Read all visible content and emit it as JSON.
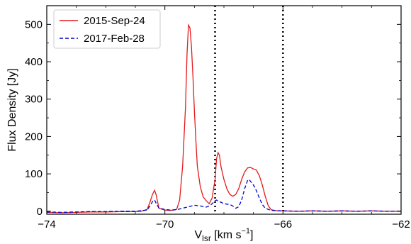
{
  "chart_data": {
    "type": "line",
    "title": "",
    "xlabel_main": "V",
    "xlabel_sub": "lsr",
    "xlabel_unit": " [km s",
    "xlabel_exp": "−1",
    "xlabel_close": "]",
    "ylabel": "Flux Density [Jy]",
    "xlim": [
      -74,
      -62
    ],
    "ylim": [
      -8,
      550
    ],
    "x_ticks": [
      -74,
      -70,
      -66,
      -62
    ],
    "x_tick_labels": [
      "−74",
      "−70",
      "−66",
      "−62"
    ],
    "y_ticks": [
      0,
      100,
      200,
      300,
      400,
      500
    ],
    "y_tick_labels": [
      "0",
      "100",
      "200",
      "300",
      "400",
      "500"
    ],
    "grid": false,
    "legend_position": "top-left",
    "vlines": [
      -68.3,
      -66.0
    ],
    "series": [
      {
        "name": "2015-Sep-24",
        "color": "#e41a1c",
        "dash": "solid",
        "points": [
          [
            -74.0,
            -3
          ],
          [
            -73.5,
            -4
          ],
          [
            -73.0,
            -3
          ],
          [
            -72.5,
            -2
          ],
          [
            -72.0,
            -2
          ],
          [
            -71.5,
            -1
          ],
          [
            -71.0,
            -1
          ],
          [
            -70.8,
            0
          ],
          [
            -70.6,
            5
          ],
          [
            -70.5,
            25
          ],
          [
            -70.42,
            45
          ],
          [
            -70.35,
            56
          ],
          [
            -70.3,
            45
          ],
          [
            -70.2,
            8
          ],
          [
            -70.0,
            3
          ],
          [
            -69.8,
            2
          ],
          [
            -69.6,
            5
          ],
          [
            -69.5,
            30
          ],
          [
            -69.4,
            120
          ],
          [
            -69.3,
            280
          ],
          [
            -69.25,
            420
          ],
          [
            -69.2,
            498
          ],
          [
            -69.15,
            490
          ],
          [
            -69.1,
            440
          ],
          [
            -69.05,
            360
          ],
          [
            -69.0,
            270
          ],
          [
            -68.95,
            190
          ],
          [
            -68.9,
            120
          ],
          [
            -68.8,
            65
          ],
          [
            -68.7,
            38
          ],
          [
            -68.6,
            28
          ],
          [
            -68.5,
            20
          ],
          [
            -68.4,
            35
          ],
          [
            -68.3,
            85
          ],
          [
            -68.25,
            140
          ],
          [
            -68.2,
            157
          ],
          [
            -68.15,
            150
          ],
          [
            -68.1,
            120
          ],
          [
            -68.0,
            85
          ],
          [
            -67.9,
            60
          ],
          [
            -67.8,
            45
          ],
          [
            -67.7,
            40
          ],
          [
            -67.6,
            45
          ],
          [
            -67.5,
            60
          ],
          [
            -67.4,
            85
          ],
          [
            -67.3,
            105
          ],
          [
            -67.2,
            116
          ],
          [
            -67.1,
            117
          ],
          [
            -67.0,
            113
          ],
          [
            -66.9,
            110
          ],
          [
            -66.8,
            95
          ],
          [
            -66.7,
            70
          ],
          [
            -66.6,
            40
          ],
          [
            -66.5,
            15
          ],
          [
            -66.4,
            4
          ],
          [
            -66.2,
            1
          ],
          [
            -66.0,
            1
          ],
          [
            -65.5,
            0
          ],
          [
            -65.0,
            1
          ],
          [
            -64.5,
            0
          ],
          [
            -64.0,
            1
          ],
          [
            -63.5,
            0
          ],
          [
            -63.0,
            1
          ],
          [
            -62.5,
            0
          ],
          [
            -62.0,
            0
          ]
        ]
      },
      {
        "name": "2017-Feb-28",
        "color": "#0000cc",
        "dash": "dashed",
        "points": [
          [
            -74.0,
            -2
          ],
          [
            -73.5,
            -3
          ],
          [
            -73.0,
            -2
          ],
          [
            -72.5,
            -1
          ],
          [
            -72.0,
            -1
          ],
          [
            -71.5,
            0
          ],
          [
            -71.0,
            0
          ],
          [
            -70.6,
            3
          ],
          [
            -70.5,
            15
          ],
          [
            -70.4,
            28
          ],
          [
            -70.35,
            30
          ],
          [
            -70.3,
            22
          ],
          [
            -70.2,
            8
          ],
          [
            -70.0,
            5
          ],
          [
            -69.8,
            3
          ],
          [
            -69.6,
            4
          ],
          [
            -69.4,
            8
          ],
          [
            -69.2,
            12
          ],
          [
            -69.0,
            16
          ],
          [
            -68.8,
            14
          ],
          [
            -68.6,
            11
          ],
          [
            -68.5,
            14
          ],
          [
            -68.4,
            20
          ],
          [
            -68.3,
            28
          ],
          [
            -68.25,
            30
          ],
          [
            -68.2,
            27
          ],
          [
            -68.1,
            24
          ],
          [
            -68.0,
            20
          ],
          [
            -67.9,
            19
          ],
          [
            -67.8,
            18
          ],
          [
            -67.7,
            14
          ],
          [
            -67.6,
            8
          ],
          [
            -67.5,
            12
          ],
          [
            -67.4,
            30
          ],
          [
            -67.3,
            60
          ],
          [
            -67.2,
            82
          ],
          [
            -67.15,
            85
          ],
          [
            -67.1,
            80
          ],
          [
            -67.0,
            70
          ],
          [
            -66.9,
            55
          ],
          [
            -66.8,
            35
          ],
          [
            -66.7,
            18
          ],
          [
            -66.6,
            8
          ],
          [
            -66.4,
            2
          ],
          [
            -66.0,
            1
          ],
          [
            -65.5,
            0
          ],
          [
            -65.0,
            1
          ],
          [
            -64.5,
            0
          ],
          [
            -64.0,
            1
          ],
          [
            -63.5,
            0
          ],
          [
            -63.0,
            1
          ],
          [
            -62.5,
            0
          ],
          [
            -62.0,
            0
          ]
        ]
      }
    ]
  }
}
